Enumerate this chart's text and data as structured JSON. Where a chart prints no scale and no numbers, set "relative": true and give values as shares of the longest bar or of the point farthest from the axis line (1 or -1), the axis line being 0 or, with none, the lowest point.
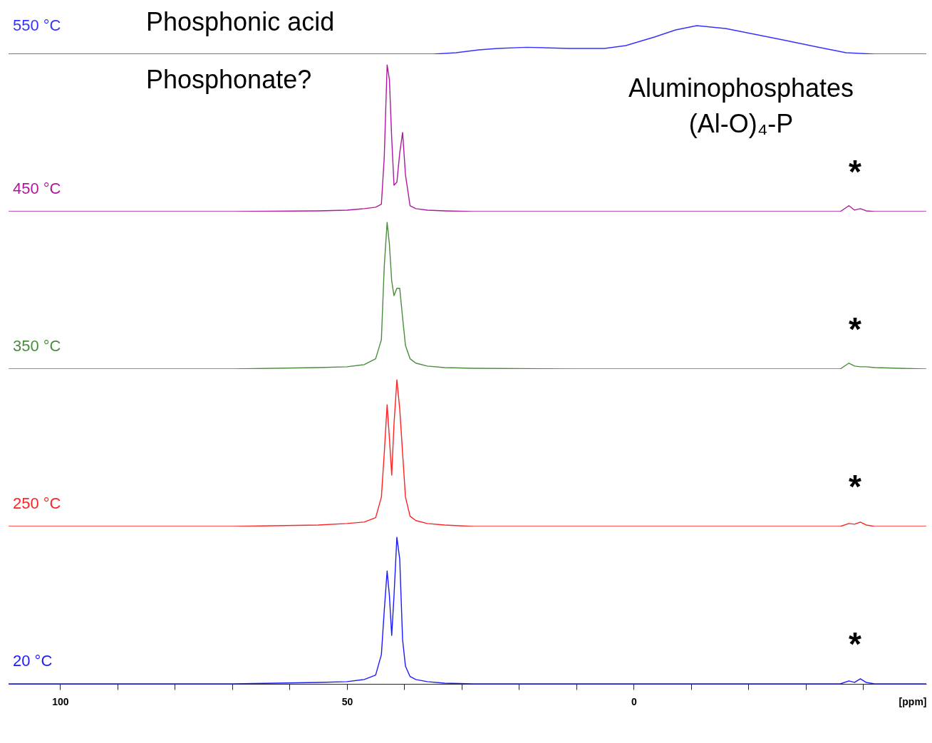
{
  "chart_data": [
    {
      "type": "line",
      "relative": true,
      "xlim": [
        109,
        -51
      ],
      "tick_labels": false,
      "x": [
        109,
        70,
        50,
        35,
        31,
        27,
        23.7,
        18.7,
        11.3,
        5.1,
        1.4,
        -3.6,
        -7.3,
        -11,
        -16,
        -21,
        -26,
        -32,
        -37,
        -42,
        -51
      ],
      "series": [
        {
          "name": "550 °C",
          "color": "#3333ff",
          "values": [
            0,
            0,
            0,
            0,
            0.05,
            0.15,
            0.2,
            0.24,
            0.2,
            0.2,
            0.3,
            0.6,
            0.85,
            1.0,
            0.9,
            0.7,
            0.5,
            0.25,
            0.05,
            0,
            0
          ]
        }
      ],
      "annotations": [
        "Phosphonic acid"
      ]
    },
    {
      "type": "line",
      "relative": true,
      "xlim": [
        109,
        -51
      ],
      "tick_labels": false,
      "x": [
        109,
        70,
        55,
        50,
        47,
        45,
        44,
        43.5,
        43,
        42.6,
        42.2,
        41.8,
        41.3,
        40.8,
        40.3,
        39.8,
        39,
        38,
        36,
        33,
        28,
        10,
        -30,
        -36,
        -37.5,
        -38.5,
        -39.5,
        -40.5,
        -42,
        -51
      ],
      "series": [
        {
          "name": "450 °C",
          "color": "#b0179e",
          "values": [
            0,
            0,
            0.005,
            0.01,
            0.02,
            0.03,
            0.05,
            0.37,
            1.0,
            0.9,
            0.5,
            0.18,
            0.2,
            0.4,
            0.54,
            0.25,
            0.04,
            0.02,
            0.01,
            0.005,
            0,
            0,
            0,
            0,
            0.04,
            0.01,
            0.02,
            0.005,
            0,
            0
          ]
        }
      ],
      "annotations": [
        "Phosphonate?",
        "Aluminophosphates\n(Al-O)₄-P",
        "*"
      ]
    },
    {
      "type": "line",
      "relative": true,
      "xlim": [
        109,
        -51
      ],
      "tick_labels": false,
      "x": [
        109,
        70,
        55,
        50,
        47,
        45,
        44,
        43.5,
        43,
        42.6,
        42.2,
        41.8,
        41.3,
        40.8,
        40.3,
        39.8,
        39,
        38,
        36,
        33,
        28,
        10,
        -30,
        -36,
        -37.5,
        -38.5,
        -39.5,
        -40.5,
        -42,
        -51
      ],
      "series": [
        {
          "name": "350 °C",
          "color": "#4a8c3c",
          "values": [
            0,
            0,
            0.01,
            0.015,
            0.03,
            0.07,
            0.2,
            0.7,
            1.0,
            0.85,
            0.6,
            0.5,
            0.55,
            0.55,
            0.35,
            0.16,
            0.07,
            0.04,
            0.02,
            0.01,
            0.005,
            0,
            0,
            0,
            0.04,
            0.02,
            0.015,
            0.015,
            0.01,
            0
          ]
        }
      ],
      "annotations": [
        "*"
      ]
    },
    {
      "type": "line",
      "relative": true,
      "xlim": [
        109,
        -51
      ],
      "tick_labels": false,
      "x": [
        109,
        70,
        55,
        50,
        47,
        45,
        44,
        43.5,
        43,
        42.6,
        42.2,
        41.8,
        41.3,
        40.8,
        40.3,
        39.8,
        39,
        38,
        36,
        33,
        28,
        10,
        -30,
        -36,
        -37.5,
        -38.5,
        -39.5,
        -40.5,
        -42,
        -51
      ],
      "series": [
        {
          "name": "250 °C",
          "color": "#ff2222",
          "values": [
            0,
            0,
            0.01,
            0.02,
            0.03,
            0.06,
            0.2,
            0.5,
            0.83,
            0.6,
            0.35,
            0.7,
            1.0,
            0.8,
            0.5,
            0.2,
            0.07,
            0.04,
            0.02,
            0.01,
            0,
            0,
            0,
            0,
            0.02,
            0.015,
            0.03,
            0.01,
            0,
            0
          ]
        }
      ],
      "annotations": [
        "*"
      ]
    },
    {
      "type": "line",
      "relative": true,
      "xlim": [
        109,
        -51
      ],
      "tick_labels": "x",
      "xlabel": "[ppm]",
      "xticks": [
        100,
        {
          "value": 90,
          "label": null
        },
        {
          "value": 80,
          "label": null
        },
        {
          "value": 70,
          "label": null
        },
        {
          "value": 60,
          "label": null
        },
        50,
        {
          "value": 40,
          "label": null
        },
        {
          "value": 30,
          "label": null
        },
        {
          "value": 20,
          "label": null
        },
        {
          "value": 10,
          "label": null
        },
        0,
        {
          "value": -10,
          "label": null
        },
        {
          "value": -20,
          "label": null
        },
        {
          "value": -30,
          "label": null
        },
        {
          "value": -40,
          "label": null
        }
      ],
      "x": [
        109,
        70,
        55,
        50,
        47,
        45,
        44,
        43.5,
        43,
        42.6,
        42.2,
        41.8,
        41.3,
        40.8,
        40.3,
        39.8,
        39,
        38,
        36,
        33,
        28,
        10,
        -30,
        -36,
        -37.5,
        -38.5,
        -39.5,
        -40.5,
        -42,
        -51
      ],
      "series": [
        {
          "name": "20 °C",
          "color": "#1a1aff",
          "values": [
            0,
            0,
            0.01,
            0.015,
            0.03,
            0.06,
            0.2,
            0.5,
            0.77,
            0.6,
            0.33,
            0.6,
            1.0,
            0.85,
            0.3,
            0.12,
            0.05,
            0.03,
            0.015,
            0.005,
            0,
            0,
            0,
            0,
            0.02,
            0.01,
            0.035,
            0.01,
            0,
            0
          ]
        }
      ],
      "annotations": [
        "*"
      ]
    }
  ]
}
